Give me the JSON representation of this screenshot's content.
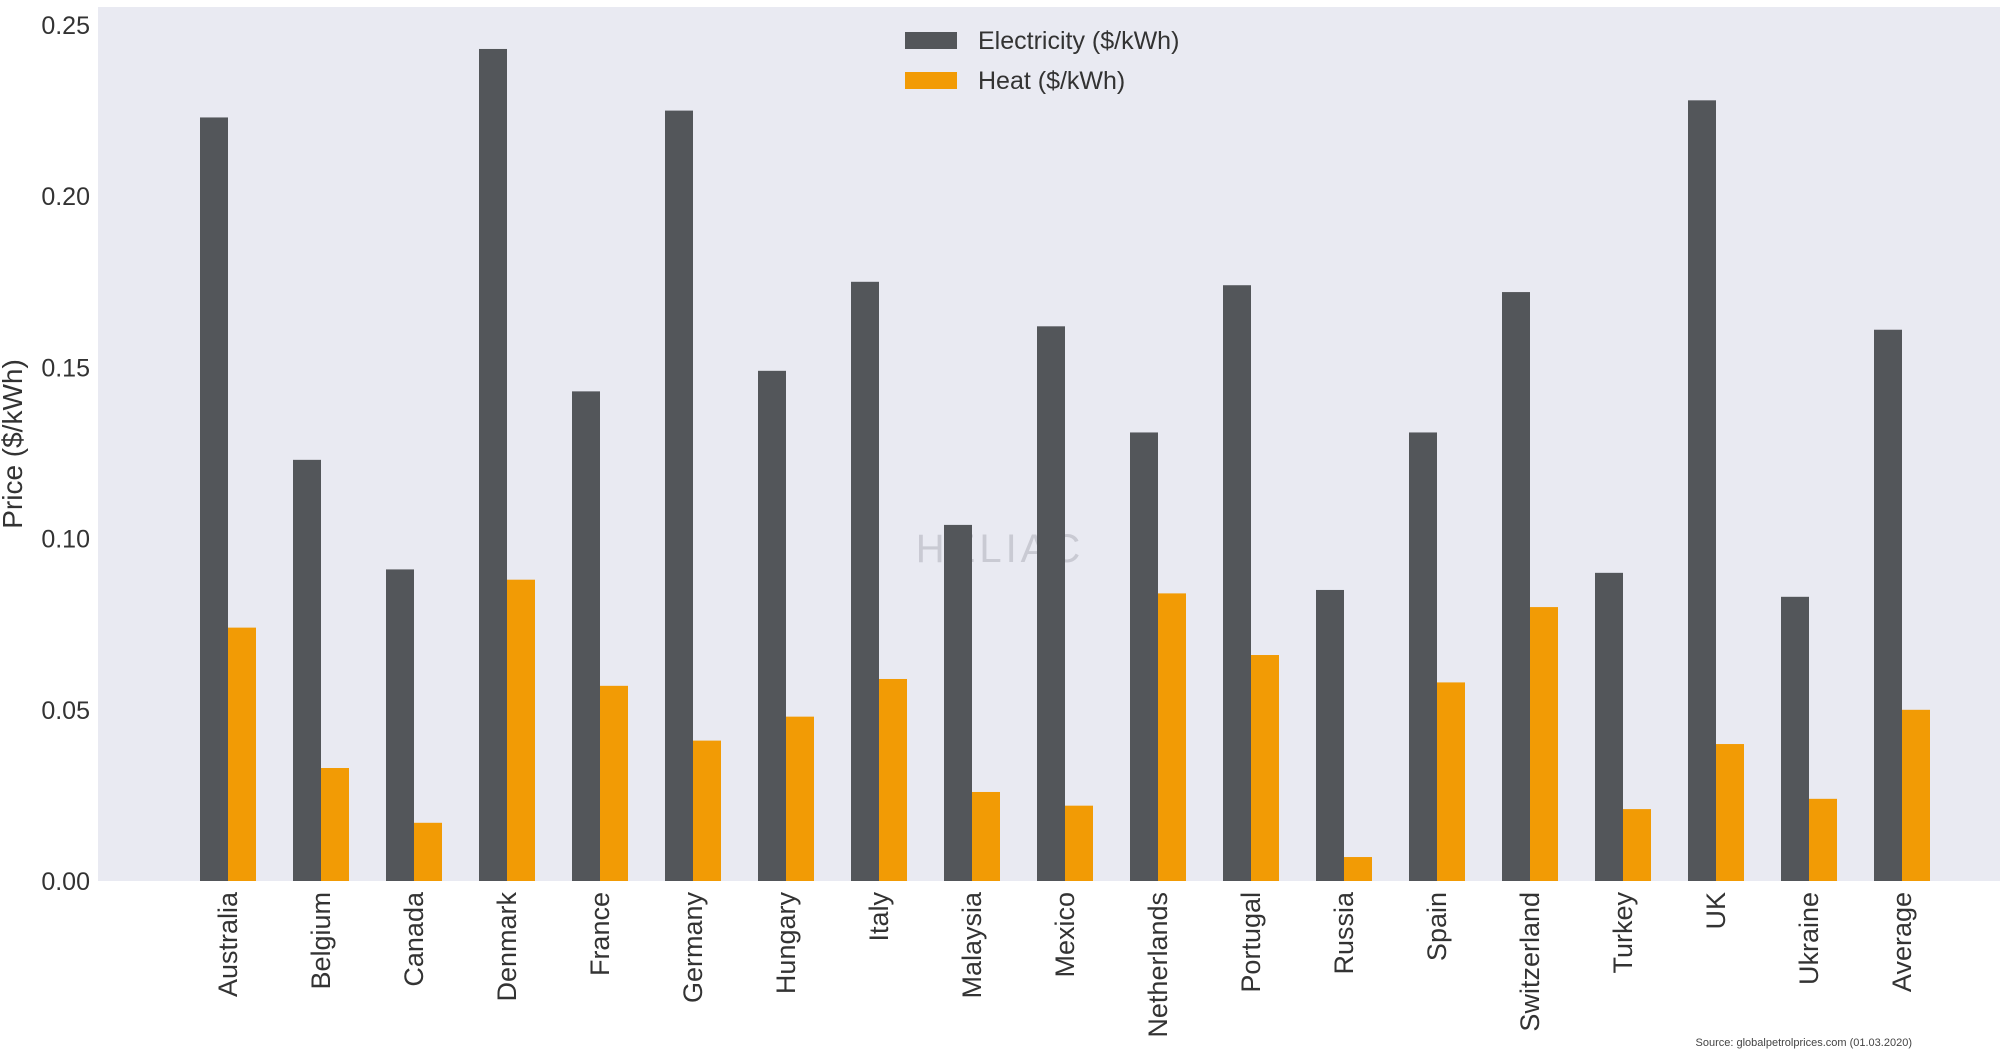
{
  "chart_data": {
    "type": "bar",
    "ylabel": "Price ($/kWh)",
    "ylim": [
      0,
      0.25
    ],
    "yticks": [
      "0.00",
      "0.05",
      "0.10",
      "0.15",
      "0.20",
      "0.25"
    ],
    "grid": false,
    "legend_position": "top-center",
    "categories": [
      "Australia",
      "Belgium",
      "Canada",
      "Denmark",
      "France",
      "Germany",
      "Hungary",
      "Italy",
      "Malaysia",
      "Mexico",
      "Netherlands",
      "Portugal",
      "Russia",
      "Spain",
      "Switzerland",
      "Turkey",
      "UK",
      "Ukraine",
      "Average"
    ],
    "series": [
      {
        "name": "Electricity ($/kWh)",
        "color": "#53565a",
        "values": [
          0.223,
          0.123,
          0.091,
          0.243,
          0.143,
          0.225,
          0.149,
          0.175,
          0.104,
          0.162,
          0.131,
          0.174,
          0.085,
          0.131,
          0.172,
          0.09,
          0.228,
          0.083,
          0.161
        ]
      },
      {
        "name": "Heat ($/kWh)",
        "color": "#f29b05",
        "values": [
          0.074,
          0.033,
          0.017,
          0.088,
          0.057,
          0.041,
          0.048,
          0.059,
          0.026,
          0.022,
          0.084,
          0.066,
          0.007,
          0.058,
          0.08,
          0.021,
          0.04,
          0.024,
          0.05
        ]
      }
    ],
    "source_note": "Source: globalpetrolprices.com (01.03.2020)",
    "watermark": "HELIAC"
  },
  "style": {
    "plot_background": "#e9eaf2",
    "axis_text_color": "#333333"
  }
}
